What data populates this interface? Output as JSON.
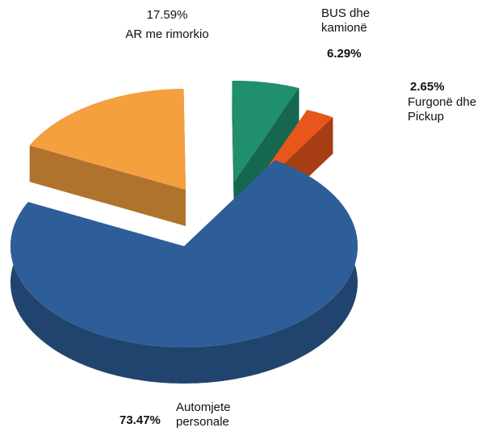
{
  "chart_data": {
    "type": "pie3d",
    "categories": [
      "AR me rimorkio",
      "BUS dhe kamionë",
      "Furgonë dhe Pickup",
      "Automjete personale"
    ],
    "values": [
      17.59,
      6.29,
      2.65,
      73.47
    ],
    "value_labels": [
      "17.59%",
      "6.29%",
      "2.65%",
      "73.47%"
    ],
    "colors": [
      "#f4a03f",
      "#1f8f6e",
      "#e8561b",
      "#2e5e99"
    ]
  }
}
